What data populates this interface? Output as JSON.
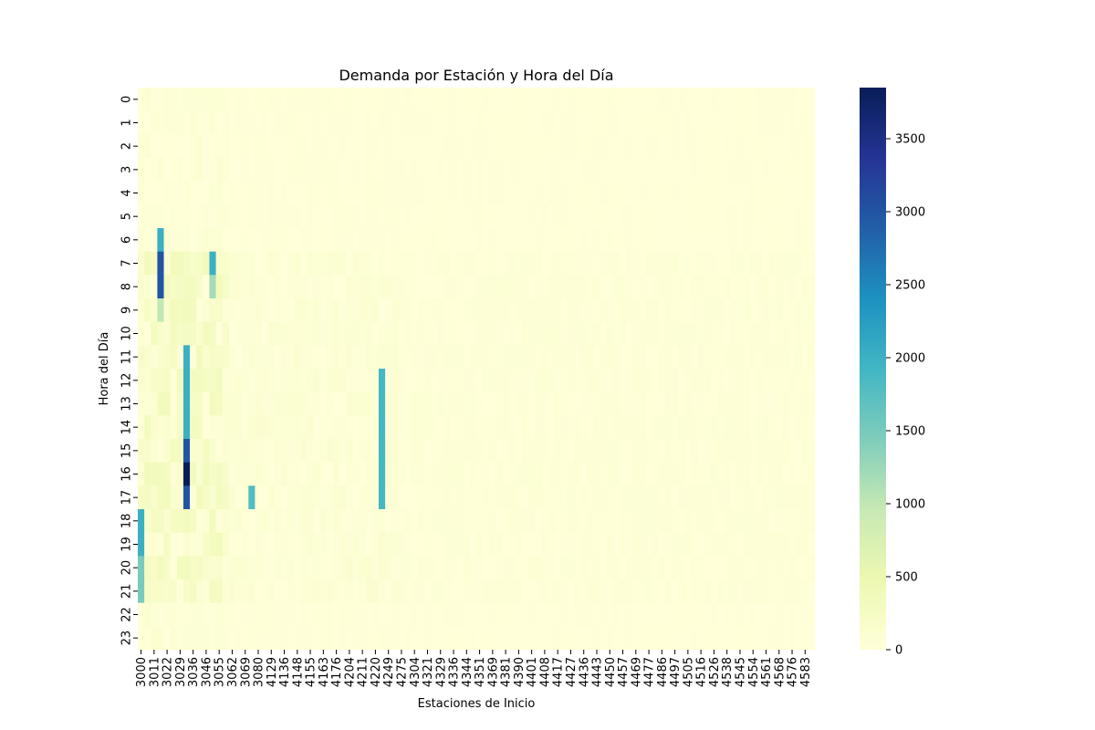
{
  "chart_data": {
    "type": "heatmap",
    "title": "Demanda por Estación y Hora del Día",
    "xlabel": "Estaciones de Inicio",
    "ylabel": "Hora del Día",
    "y_categories": [
      "0",
      "1",
      "2",
      "3",
      "4",
      "5",
      "6",
      "7",
      "8",
      "9",
      "10",
      "11",
      "12",
      "13",
      "14",
      "15",
      "16",
      "17",
      "18",
      "19",
      "20",
      "21",
      "22",
      "23"
    ],
    "x_tick_labels": [
      "3000",
      "3011",
      "3022",
      "3029",
      "3036",
      "3046",
      "3055",
      "3062",
      "3069",
      "3080",
      "4129",
      "4136",
      "4148",
      "4155",
      "4163",
      "4176",
      "4204",
      "4211",
      "4220",
      "4249",
      "4275",
      "4304",
      "4321",
      "4329",
      "4336",
      "4344",
      "4351",
      "4369",
      "4381",
      "4390",
      "4401",
      "4408",
      "4417",
      "4427",
      "4436",
      "4443",
      "4450",
      "4457",
      "4469",
      "4477",
      "4486",
      "4497",
      "4505",
      "4516",
      "4526",
      "4538",
      "4545",
      "4554",
      "4561",
      "4568",
      "4576",
      "4583"
    ],
    "colorbar": {
      "ticks": [
        0,
        500,
        1000,
        1500,
        2000,
        2500,
        3000,
        3500
      ],
      "range": [
        0,
        3850
      ],
      "colormap": "YlGnBu",
      "colors": [
        "#ffffd9",
        "#edf8b1",
        "#c7e9b4",
        "#7fcdbb",
        "#41b6c4",
        "#1d91c0",
        "#225ea8",
        "#253494",
        "#081d58"
      ]
    },
    "hotspots": [
      {
        "station": "3014",
        "hours": [
          6
        ],
        "value": 2000
      },
      {
        "station": "3014",
        "hours": [
          7,
          8
        ],
        "value": 3000
      },
      {
        "station": "3014",
        "hours": [
          9
        ],
        "value": 1000
      },
      {
        "station": "3031",
        "hours": [
          15
        ],
        "value": 3000
      },
      {
        "station": "3031",
        "hours": [
          16
        ],
        "value": 3850
      },
      {
        "station": "3031",
        "hours": [
          17
        ],
        "value": 3000
      },
      {
        "station": "3031",
        "hours": [
          11,
          12,
          13,
          14
        ],
        "value": 2000
      },
      {
        "station": "3047",
        "hours": [
          7
        ],
        "value": 2000
      },
      {
        "station": "3047",
        "hours": [
          8
        ],
        "value": 1200
      },
      {
        "station": "4218",
        "hours": [
          12,
          13,
          14,
          15,
          16,
          17
        ],
        "value": 1900
      },
      {
        "station": "3000",
        "hours": [
          18,
          19
        ],
        "value": 2000
      },
      {
        "station": "3000",
        "hours": [
          20,
          21
        ],
        "value": 1500
      },
      {
        "station": "3072",
        "hours": [
          17
        ],
        "value": 1800
      }
    ]
  }
}
